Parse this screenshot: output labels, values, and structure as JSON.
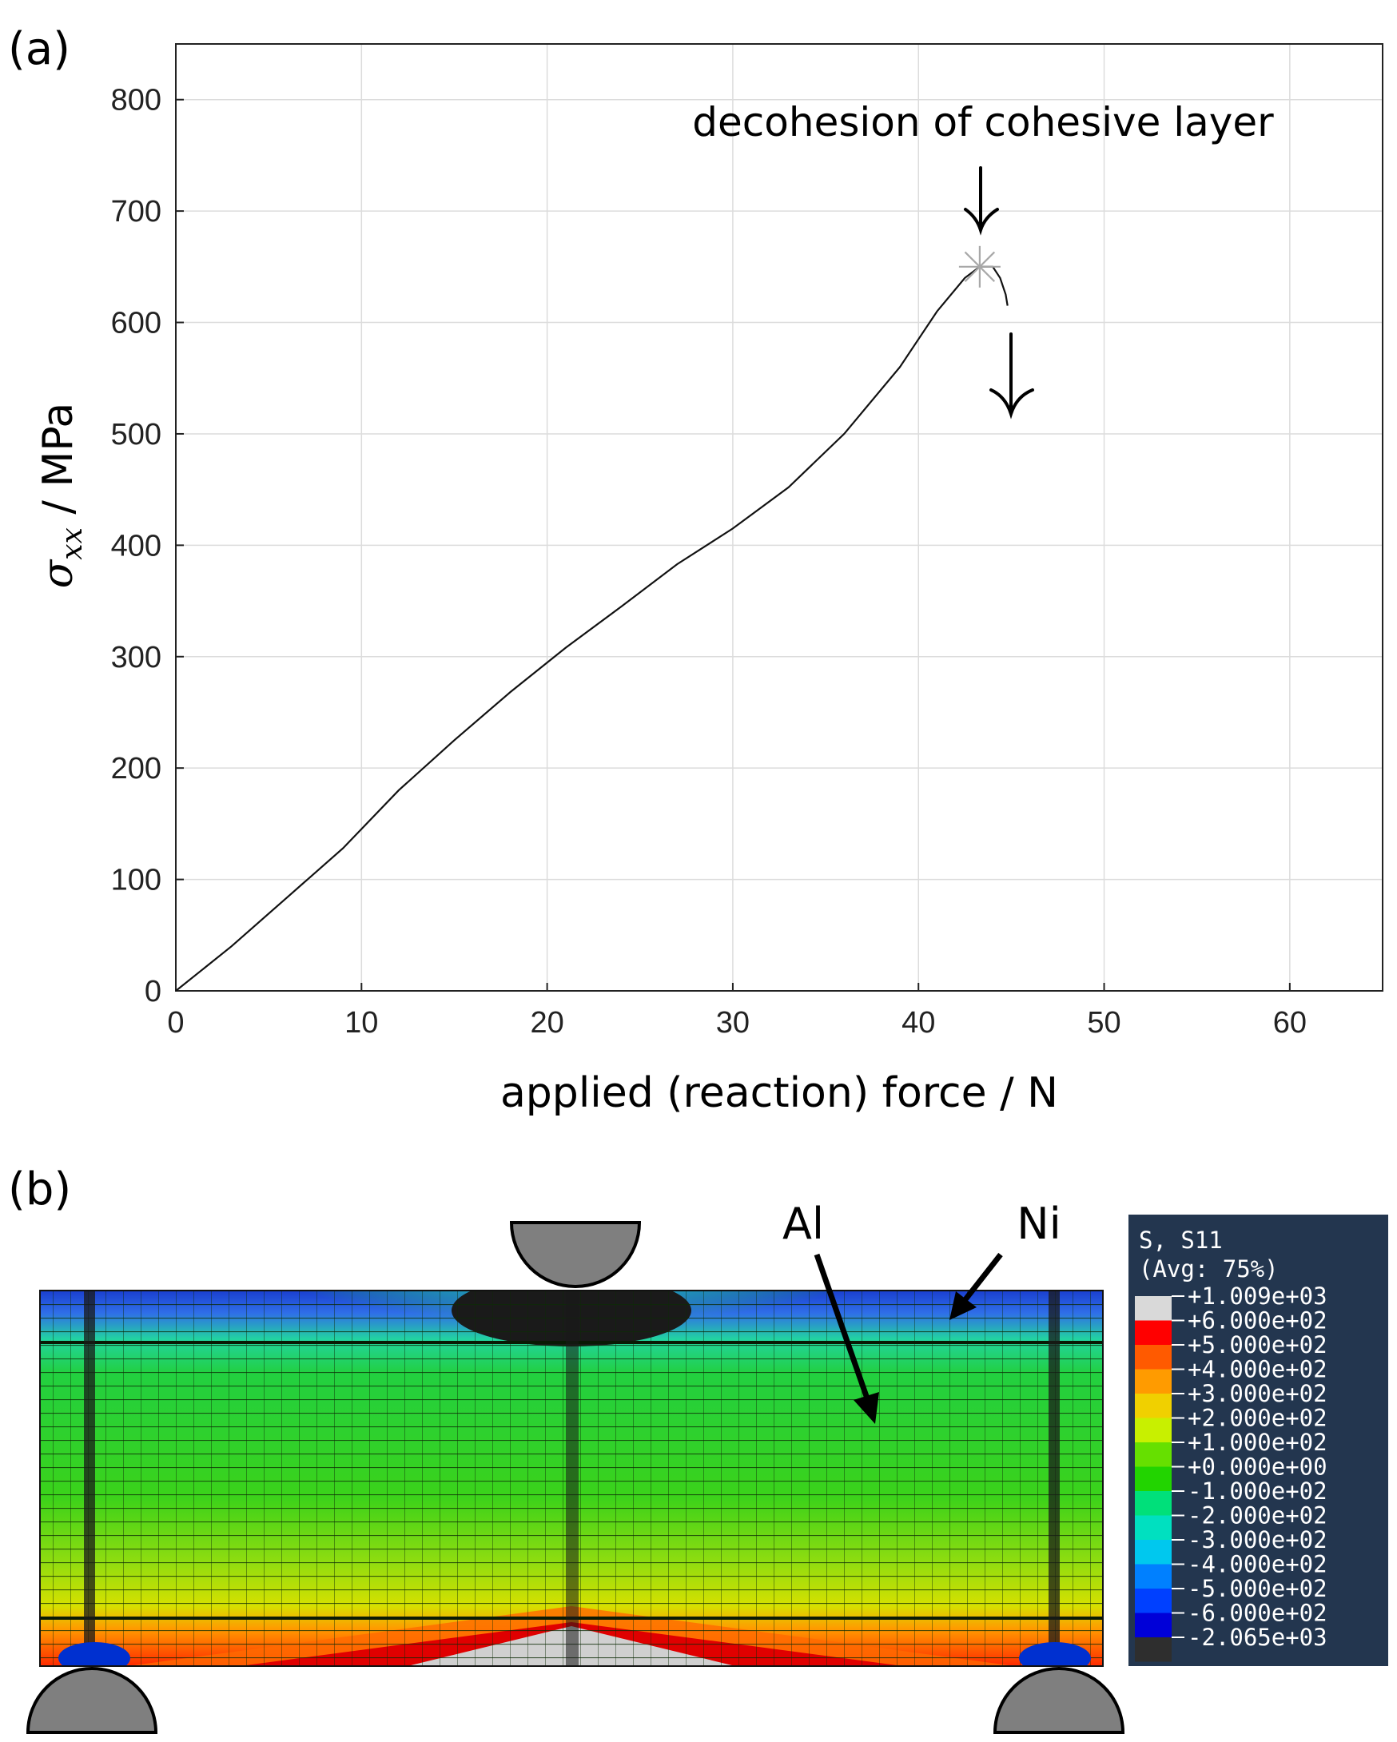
{
  "panel_a": {
    "label": "(a)",
    "annotation": "decohesion of cohesive layer"
  },
  "panel_b": {
    "label": "(b)",
    "material_al": "Al",
    "material_ni": "Ni",
    "legend": {
      "title1": "S, S11",
      "title2": "(Avg: 75%)",
      "levels": [
        {
          "label": "+1.009e+03",
          "color": "#d9d9d9"
        },
        {
          "label": "+6.000e+02",
          "color": "#ff0000"
        },
        {
          "label": "+5.000e+02",
          "color": "#ff5a00"
        },
        {
          "label": "+4.000e+02",
          "color": "#ff9b00"
        },
        {
          "label": "+3.000e+02",
          "color": "#f0d000"
        },
        {
          "label": "+2.000e+02",
          "color": "#c8f000"
        },
        {
          "label": "+1.000e+02",
          "color": "#66e000"
        },
        {
          "label": "+0.000e+00",
          "color": "#22d400"
        },
        {
          "label": "-1.000e+02",
          "color": "#00e07a"
        },
        {
          "label": "-2.000e+02",
          "color": "#00e0c0"
        },
        {
          "label": "-3.000e+02",
          "color": "#00c8ee"
        },
        {
          "label": "-4.000e+02",
          "color": "#0080ff"
        },
        {
          "label": "-5.000e+02",
          "color": "#0040ff"
        },
        {
          "label": "-6.000e+02",
          "color": "#0000d8"
        },
        {
          "label": "-2.065e+03",
          "color": "#2e2e2e"
        }
      ]
    }
  },
  "chart_data": {
    "type": "line",
    "title": "",
    "xlabel": "applied (reaction) force / N",
    "ylabel": "σxx / MPa",
    "xlim": [
      0,
      65
    ],
    "ylim": [
      0,
      850
    ],
    "xticks": [
      0,
      10,
      20,
      30,
      40,
      50,
      60
    ],
    "yticks": [
      0,
      100,
      200,
      300,
      400,
      500,
      600,
      700,
      800
    ],
    "grid": true,
    "series": [
      {
        "name": "sigma_xx",
        "x": [
          0,
          3,
          6,
          9,
          12,
          15,
          18,
          21,
          24,
          27,
          30,
          33,
          36,
          39,
          41,
          42.5,
          43.3,
          44.0,
          44.4,
          44.7,
          44.8
        ],
        "y": [
          0,
          40,
          84,
          128,
          180,
          225,
          268,
          308,
          345,
          383,
          415,
          452,
          500,
          560,
          610,
          640,
          650,
          650,
          640,
          625,
          615
        ]
      }
    ],
    "marker": {
      "x": 43.3,
      "y": 650,
      "symbol": "asterisk"
    }
  }
}
